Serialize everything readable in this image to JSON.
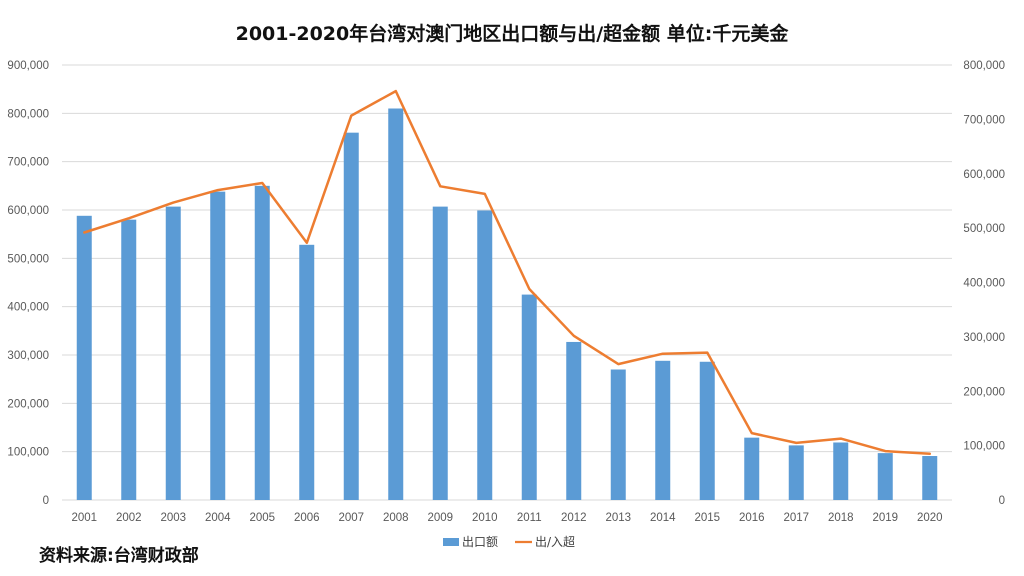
{
  "chart_data": {
    "type": "bar",
    "title": "2001-2020年台湾对澳门地区出口额与出/超金额  单位:千元美金",
    "categories": [
      "2001",
      "2002",
      "2003",
      "2004",
      "2005",
      "2006",
      "2007",
      "2008",
      "2009",
      "2010",
      "2011",
      "2012",
      "2013",
      "2014",
      "2015",
      "2016",
      "2017",
      "2018",
      "2019",
      "2020"
    ],
    "series": [
      {
        "name": "出口额",
        "type": "bar",
        "axis": "left",
        "color": "#5B9BD5",
        "values": [
          588000,
          580000,
          607000,
          638000,
          650000,
          528000,
          760000,
          810000,
          607000,
          599000,
          425000,
          327000,
          270000,
          288000,
          286000,
          129000,
          113000,
          119000,
          97000,
          91000
        ]
      },
      {
        "name": "出/入超",
        "type": "line",
        "axis": "right",
        "color": "#ED7D31",
        "values": [
          492000,
          518000,
          547000,
          570000,
          583000,
          473000,
          707000,
          752000,
          577000,
          563000,
          388000,
          302000,
          250000,
          269000,
          271000,
          123000,
          105000,
          113000,
          90000,
          85000
        ]
      }
    ],
    "y_left": {
      "min": 0,
      "max": 900000,
      "step": 100000,
      "ticks": [
        "0",
        "100,000",
        "200,000",
        "300,000",
        "400,000",
        "500,000",
        "600,000",
        "700,000",
        "800,000",
        "900,000"
      ]
    },
    "y_right": {
      "min": 0,
      "max": 800000,
      "step": 100000,
      "ticks": [
        "0",
        "100,000",
        "200,000",
        "300,000",
        "400,000",
        "500,000",
        "600,000",
        "700,000",
        "800,000"
      ]
    },
    "grid": true,
    "legend": "bottom"
  },
  "colors": {
    "grid": "#D9D9D9",
    "axis_text": "#595959"
  },
  "source_note": "资料来源:台湾财政部"
}
